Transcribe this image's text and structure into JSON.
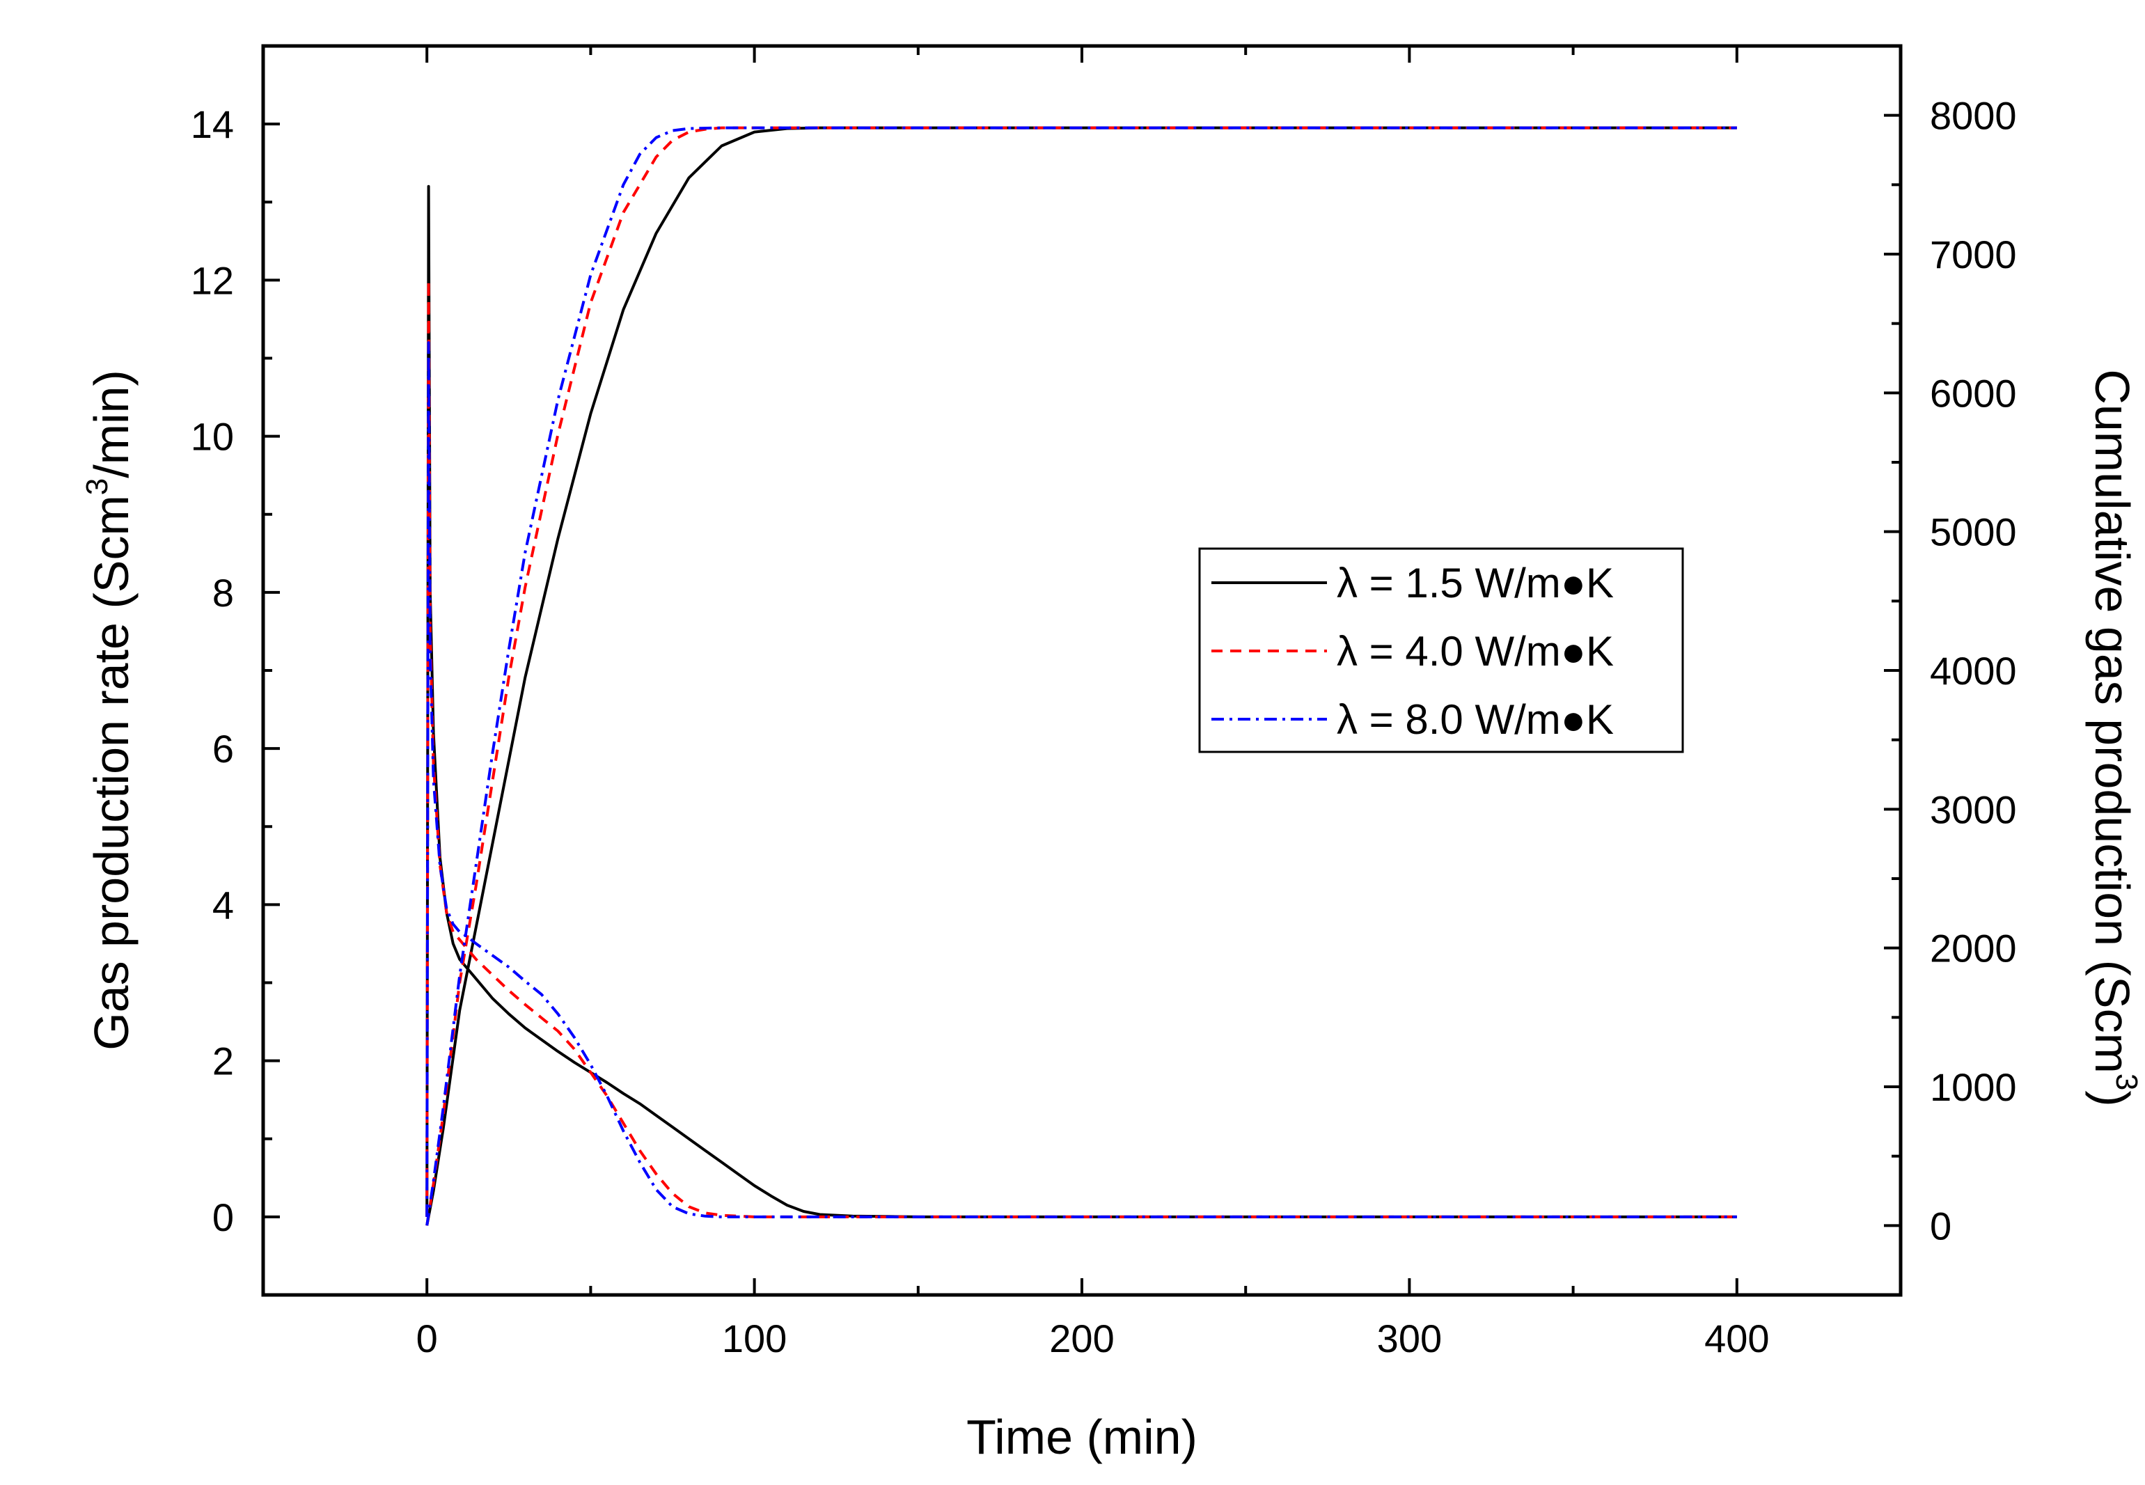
{
  "chart_data": {
    "type": "line",
    "title": "",
    "xlabel": "Time (min)",
    "ylabel_left": {
      "text": "Gas production rate (Scm",
      "sup": "3",
      "tail": "/min)"
    },
    "ylabel_right": {
      "text": "Cumulative gas production (Scm",
      "sup": "3",
      "tail": ")"
    },
    "xlim": [
      -50,
      450
    ],
    "ylim_left": [
      -1,
      15
    ],
    "ylim_right": [
      -500,
      8500
    ],
    "x_ticks": [
      0,
      100,
      200,
      300,
      400
    ],
    "x_minor_ticks": [
      -50,
      50,
      150,
      250,
      350,
      450
    ],
    "y_left_ticks": [
      0,
      2,
      4,
      6,
      8,
      10,
      12,
      14
    ],
    "y_left_minor_ticks": [
      -1,
      1,
      3,
      5,
      7,
      9,
      11,
      13,
      15
    ],
    "y_right_ticks": [
      0,
      1000,
      2000,
      3000,
      4000,
      5000,
      6000,
      7000,
      8000
    ],
    "y_right_minor_ticks": [
      -500,
      500,
      1500,
      2500,
      3500,
      4500,
      5500,
      6500,
      7500,
      8500
    ],
    "grid": false,
    "legend_position": "center-right",
    "series": [
      {
        "name": "λ = 1.5 W/m●K",
        "color": "#000000",
        "dash": "solid",
        "rate": {
          "x": [
            0,
            0.5,
            1,
            2,
            4,
            6,
            8,
            10,
            12,
            15,
            20,
            25,
            30,
            35,
            40,
            45,
            50,
            55,
            60,
            65,
            70,
            75,
            80,
            85,
            90,
            95,
            100,
            105,
            110,
            115,
            120,
            130,
            140,
            150,
            200,
            300,
            400
          ],
          "y": [
            0,
            13.2,
            8.0,
            6.2,
            4.6,
            3.9,
            3.5,
            3.3,
            3.2,
            3.05,
            2.8,
            2.6,
            2.42,
            2.27,
            2.12,
            1.98,
            1.85,
            1.72,
            1.58,
            1.45,
            1.3,
            1.15,
            1.0,
            0.85,
            0.7,
            0.55,
            0.4,
            0.27,
            0.15,
            0.07,
            0.03,
            0.01,
            0.005,
            0,
            0,
            0,
            0
          ]
        },
        "cumulative": {
          "x": [
            0,
            2,
            5,
            10,
            15,
            20,
            25,
            30,
            40,
            50,
            60,
            70,
            80,
            90,
            100,
            110,
            120,
            130,
            200,
            300,
            400
          ],
          "y": [
            0,
            250,
            700,
            1550,
            2150,
            2750,
            3350,
            3950,
            4950,
            5850,
            6600,
            7150,
            7550,
            7780,
            7880,
            7905,
            7910,
            7910,
            7910,
            7910,
            7910
          ]
        }
      },
      {
        "name": "λ = 4.0 W/m●K",
        "color": "#ff0000",
        "dash": "16,11",
        "rate": {
          "x": [
            0,
            0.5,
            1,
            2,
            4,
            6,
            8,
            10,
            12,
            15,
            20,
            25,
            30,
            35,
            40,
            45,
            50,
            55,
            60,
            65,
            70,
            75,
            80,
            85,
            90,
            95,
            100,
            110,
            120,
            150,
            200,
            300,
            400
          ],
          "y": [
            0,
            12.0,
            7.5,
            5.8,
            4.5,
            3.9,
            3.65,
            3.55,
            3.45,
            3.3,
            3.1,
            2.9,
            2.72,
            2.55,
            2.38,
            2.15,
            1.85,
            1.55,
            1.2,
            0.85,
            0.55,
            0.3,
            0.13,
            0.05,
            0.02,
            0.01,
            0,
            0,
            0,
            0,
            0,
            0,
            0
          ]
        },
        "cumulative": {
          "x": [
            0,
            2,
            5,
            10,
            15,
            20,
            25,
            30,
            40,
            50,
            60,
            70,
            75,
            80,
            85,
            90,
            100,
            120,
            200,
            300,
            400
          ],
          "y": [
            0,
            300,
            800,
            1750,
            2450,
            3200,
            3950,
            4600,
            5700,
            6650,
            7300,
            7700,
            7820,
            7880,
            7900,
            7910,
            7910,
            7910,
            7910,
            7910,
            7910
          ]
        }
      },
      {
        "name": "λ = 8.0 W/m●K",
        "color": "#0000ff",
        "dash": "18,8,4,8",
        "rate": {
          "x": [
            0,
            0.5,
            1,
            2,
            4,
            6,
            8,
            10,
            12,
            15,
            20,
            25,
            30,
            35,
            40,
            45,
            50,
            55,
            60,
            65,
            70,
            75,
            80,
            85,
            90,
            100,
            120,
            150,
            200,
            300,
            400
          ],
          "y": [
            0,
            11.2,
            7.2,
            5.6,
            4.5,
            3.95,
            3.75,
            3.65,
            3.6,
            3.5,
            3.35,
            3.2,
            3.02,
            2.85,
            2.6,
            2.3,
            1.95,
            1.55,
            1.1,
            0.7,
            0.35,
            0.13,
            0.04,
            0.01,
            0,
            0,
            0,
            0,
            0,
            0,
            0
          ]
        },
        "cumulative": {
          "x": [
            0,
            2,
            5,
            10,
            15,
            20,
            25,
            30,
            40,
            50,
            60,
            65,
            70,
            75,
            80,
            90,
            100,
            120,
            200,
            300,
            400
          ],
          "y": [
            0,
            320,
            850,
            1800,
            2600,
            3400,
            4150,
            4850,
            5950,
            6850,
            7500,
            7720,
            7840,
            7890,
            7905,
            7910,
            7910,
            7910,
            7910,
            7910,
            7910
          ]
        }
      }
    ]
  }
}
